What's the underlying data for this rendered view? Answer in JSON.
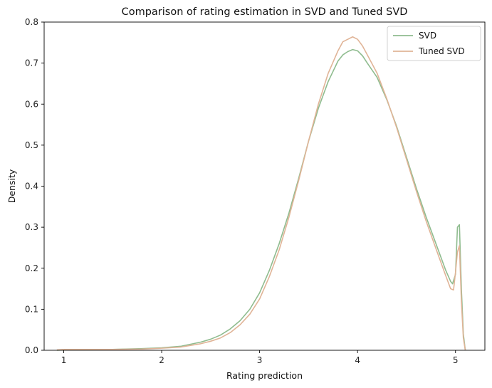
{
  "chart_data": {
    "type": "line",
    "title": "Comparison of rating estimation in SVD and Tuned SVD",
    "xlabel": "Rating prediction",
    "ylabel": "Density",
    "xlim": [
      0.8,
      5.3
    ],
    "ylim": [
      0,
      0.8
    ],
    "xticks": [
      1,
      2,
      3,
      4,
      5
    ],
    "yticks": [
      0.0,
      0.1,
      0.2,
      0.3,
      0.4,
      0.5,
      0.6,
      0.7,
      0.8
    ],
    "xtick_labels": [
      "1",
      "2",
      "3",
      "4",
      "5"
    ],
    "ytick_labels": [
      "0.0",
      "0.1",
      "0.2",
      "0.3",
      "0.4",
      "0.5",
      "0.6",
      "0.7",
      "0.8"
    ],
    "grid": false,
    "legend_position": "top-right",
    "series": [
      {
        "name": "SVD",
        "color": "#8fbc8f",
        "points": [
          [
            0.93,
            0.0
          ],
          [
            1.0,
            0.001
          ],
          [
            1.2,
            0.001
          ],
          [
            1.5,
            0.002
          ],
          [
            1.8,
            0.004
          ],
          [
            2.0,
            0.006
          ],
          [
            2.2,
            0.01
          ],
          [
            2.3,
            0.015
          ],
          [
            2.4,
            0.02
          ],
          [
            2.5,
            0.027
          ],
          [
            2.6,
            0.037
          ],
          [
            2.7,
            0.052
          ],
          [
            2.8,
            0.072
          ],
          [
            2.9,
            0.1
          ],
          [
            3.0,
            0.14
          ],
          [
            3.1,
            0.195
          ],
          [
            3.2,
            0.26
          ],
          [
            3.3,
            0.335
          ],
          [
            3.4,
            0.42
          ],
          [
            3.5,
            0.51
          ],
          [
            3.6,
            0.59
          ],
          [
            3.7,
            0.655
          ],
          [
            3.8,
            0.705
          ],
          [
            3.85,
            0.72
          ],
          [
            3.9,
            0.728
          ],
          [
            3.95,
            0.733
          ],
          [
            4.0,
            0.73
          ],
          [
            4.05,
            0.718
          ],
          [
            4.1,
            0.7
          ],
          [
            4.2,
            0.665
          ],
          [
            4.3,
            0.61
          ],
          [
            4.4,
            0.545
          ],
          [
            4.5,
            0.47
          ],
          [
            4.6,
            0.395
          ],
          [
            4.7,
            0.325
          ],
          [
            4.8,
            0.26
          ],
          [
            4.9,
            0.195
          ],
          [
            4.95,
            0.168
          ],
          [
            4.97,
            0.162
          ],
          [
            5.0,
            0.185
          ],
          [
            5.02,
            0.3
          ],
          [
            5.04,
            0.306
          ],
          [
            5.06,
            0.15
          ],
          [
            5.08,
            0.04
          ],
          [
            5.1,
            0.0
          ]
        ]
      },
      {
        "name": "Tuned SVD",
        "color": "#e0b497",
        "points": [
          [
            0.93,
            0.001
          ],
          [
            1.0,
            0.002
          ],
          [
            1.2,
            0.002
          ],
          [
            1.5,
            0.002
          ],
          [
            1.8,
            0.003
          ],
          [
            2.0,
            0.005
          ],
          [
            2.2,
            0.008
          ],
          [
            2.3,
            0.012
          ],
          [
            2.4,
            0.016
          ],
          [
            2.5,
            0.022
          ],
          [
            2.6,
            0.03
          ],
          [
            2.7,
            0.043
          ],
          [
            2.8,
            0.062
          ],
          [
            2.9,
            0.088
          ],
          [
            3.0,
            0.125
          ],
          [
            3.1,
            0.18
          ],
          [
            3.2,
            0.245
          ],
          [
            3.3,
            0.325
          ],
          [
            3.4,
            0.415
          ],
          [
            3.5,
            0.51
          ],
          [
            3.6,
            0.6
          ],
          [
            3.7,
            0.675
          ],
          [
            3.8,
            0.73
          ],
          [
            3.85,
            0.752
          ],
          [
            3.9,
            0.758
          ],
          [
            3.95,
            0.764
          ],
          [
            4.0,
            0.758
          ],
          [
            4.05,
            0.742
          ],
          [
            4.1,
            0.72
          ],
          [
            4.2,
            0.675
          ],
          [
            4.3,
            0.612
          ],
          [
            4.4,
            0.542
          ],
          [
            4.5,
            0.465
          ],
          [
            4.6,
            0.388
          ],
          [
            4.7,
            0.315
          ],
          [
            4.8,
            0.248
          ],
          [
            4.9,
            0.182
          ],
          [
            4.95,
            0.15
          ],
          [
            4.98,
            0.147
          ],
          [
            5.0,
            0.19
          ],
          [
            5.02,
            0.24
          ],
          [
            5.04,
            0.255
          ],
          [
            5.06,
            0.12
          ],
          [
            5.08,
            0.03
          ],
          [
            5.1,
            0.0
          ]
        ]
      }
    ]
  }
}
